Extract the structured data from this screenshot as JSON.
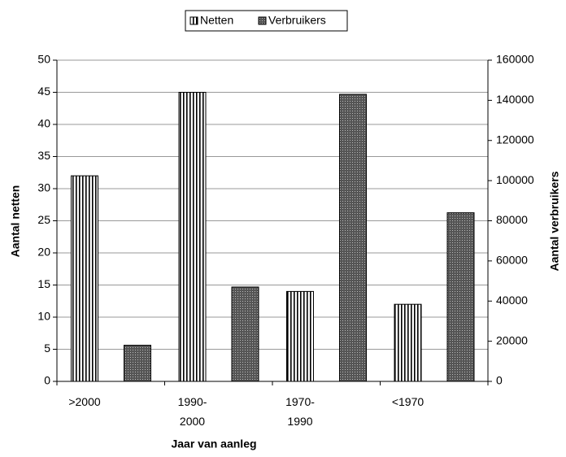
{
  "chart_data": {
    "type": "bar",
    "categories": [
      ">2000",
      "1990-\n2000",
      "1970-\n1990",
      "<1970"
    ],
    "series": [
      {
        "name": "Netten",
        "color": "#000000",
        "values": [
          32,
          45,
          14,
          12
        ]
      },
      {
        "name": "Verbruikers",
        "color": "#555555",
        "axis": "y2",
        "values": [
          18000,
          47000,
          143000,
          84000
        ]
      }
    ],
    "xlabel": "Jaar van aanleg",
    "ylabel": "Aantal netten",
    "y2label": "Aantal verbruikers",
    "ylim": [
      0,
      50
    ],
    "yticks": [
      0,
      5,
      10,
      15,
      20,
      25,
      30,
      35,
      40,
      45,
      50
    ],
    "y2lim": [
      0,
      160000
    ],
    "y2ticks": [
      0,
      20000,
      40000,
      60000,
      80000,
      100000,
      120000,
      140000,
      160000
    ],
    "grid": true,
    "legend": "top"
  }
}
